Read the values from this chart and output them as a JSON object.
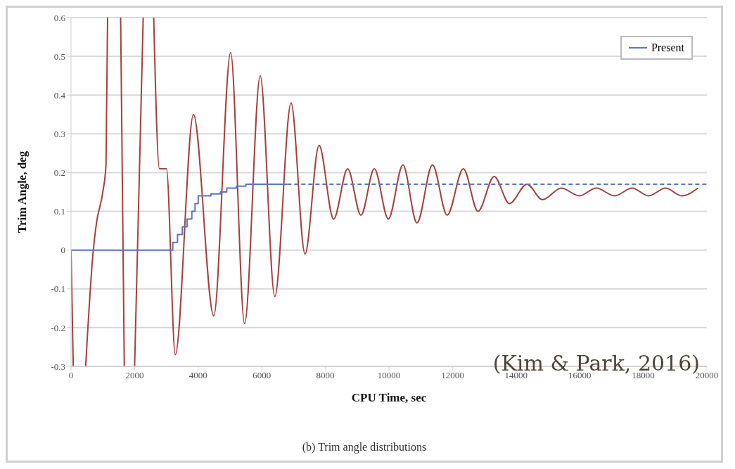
{
  "chart_data": {
    "type": "line",
    "xlabel": "CPU Time, sec",
    "ylabel": "Trim Angle, deg",
    "xlim": [
      0,
      20000
    ],
    "xticks": [
      0,
      2000,
      4000,
      6000,
      8000,
      10000,
      12000,
      14000,
      16000,
      18000,
      20000
    ],
    "ylim": [
      -0.3,
      0.6
    ],
    "yticks": [
      -0.3,
      -0.2,
      -0.1,
      0,
      0.1,
      0.2,
      0.3,
      0.4,
      0.5,
      0.6
    ],
    "grid": "y",
    "legend": "top right",
    "marker": "none",
    "annotations": [
      "(Kim & Park, 2016)",
      "(b) Trim angle distributions"
    ],
    "series": [
      {
        "color": "#a5403e",
        "line_style": "solid",
        "x": [
          0,
          70,
          71,
          460,
          700,
          800,
          1000,
          1100,
          1150,
          1151,
          1560,
          1675,
          1676,
          2000,
          2270,
          2271,
          2600,
          2780,
          3000,
          3280,
          3850,
          4490,
          5020,
          5460,
          5950,
          6410,
          6920,
          7360,
          7800,
          8260,
          8700,
          9120,
          9540,
          9980,
          10440,
          10880,
          11370,
          11830,
          12340,
          12800,
          13310,
          13790,
          14340,
          14830,
          15420,
          15990,
          16520,
          17100,
          17650,
          18170,
          18700,
          19210,
          19720
        ],
        "values": [
          0,
          -0.3,
          null,
          -0.3,
          0,
          0.07,
          0.15,
          0.22,
          0.6,
          null,
          0.6,
          -0.3,
          null,
          -0.3,
          0.6,
          null,
          0.6,
          0.21,
          0.21,
          -0.27,
          0.35,
          -0.17,
          0.51,
          -0.19,
          0.45,
          -0.12,
          0.38,
          -0.01,
          0.27,
          0.08,
          0.21,
          0.09,
          0.21,
          0.08,
          0.22,
          0.07,
          0.22,
          0.09,
          0.21,
          0.1,
          0.19,
          0.12,
          0.17,
          0.13,
          0.16,
          0.14,
          0.16,
          0.14,
          0.16,
          0.14,
          0.16,
          0.14,
          0.16
        ]
      },
      {
        "name": "Present",
        "type": "step",
        "color": "#5b77c0",
        "line_style": "solid",
        "x": [
          0,
          3200,
          3350,
          3500,
          3650,
          3800,
          3900,
          4000,
          4400,
          4700,
          4900,
          5200,
          5500,
          6800
        ],
        "values": [
          0,
          0.02,
          0.04,
          0.06,
          0.08,
          0.1,
          0.12,
          0.14,
          0.145,
          0.15,
          0.16,
          0.165,
          0.17,
          0.17
        ]
      },
      {
        "color": "#5b77c0",
        "line_style": "dashed",
        "x": [
          6800,
          20000
        ],
        "values": [
          0.17,
          0.17
        ]
      }
    ]
  }
}
